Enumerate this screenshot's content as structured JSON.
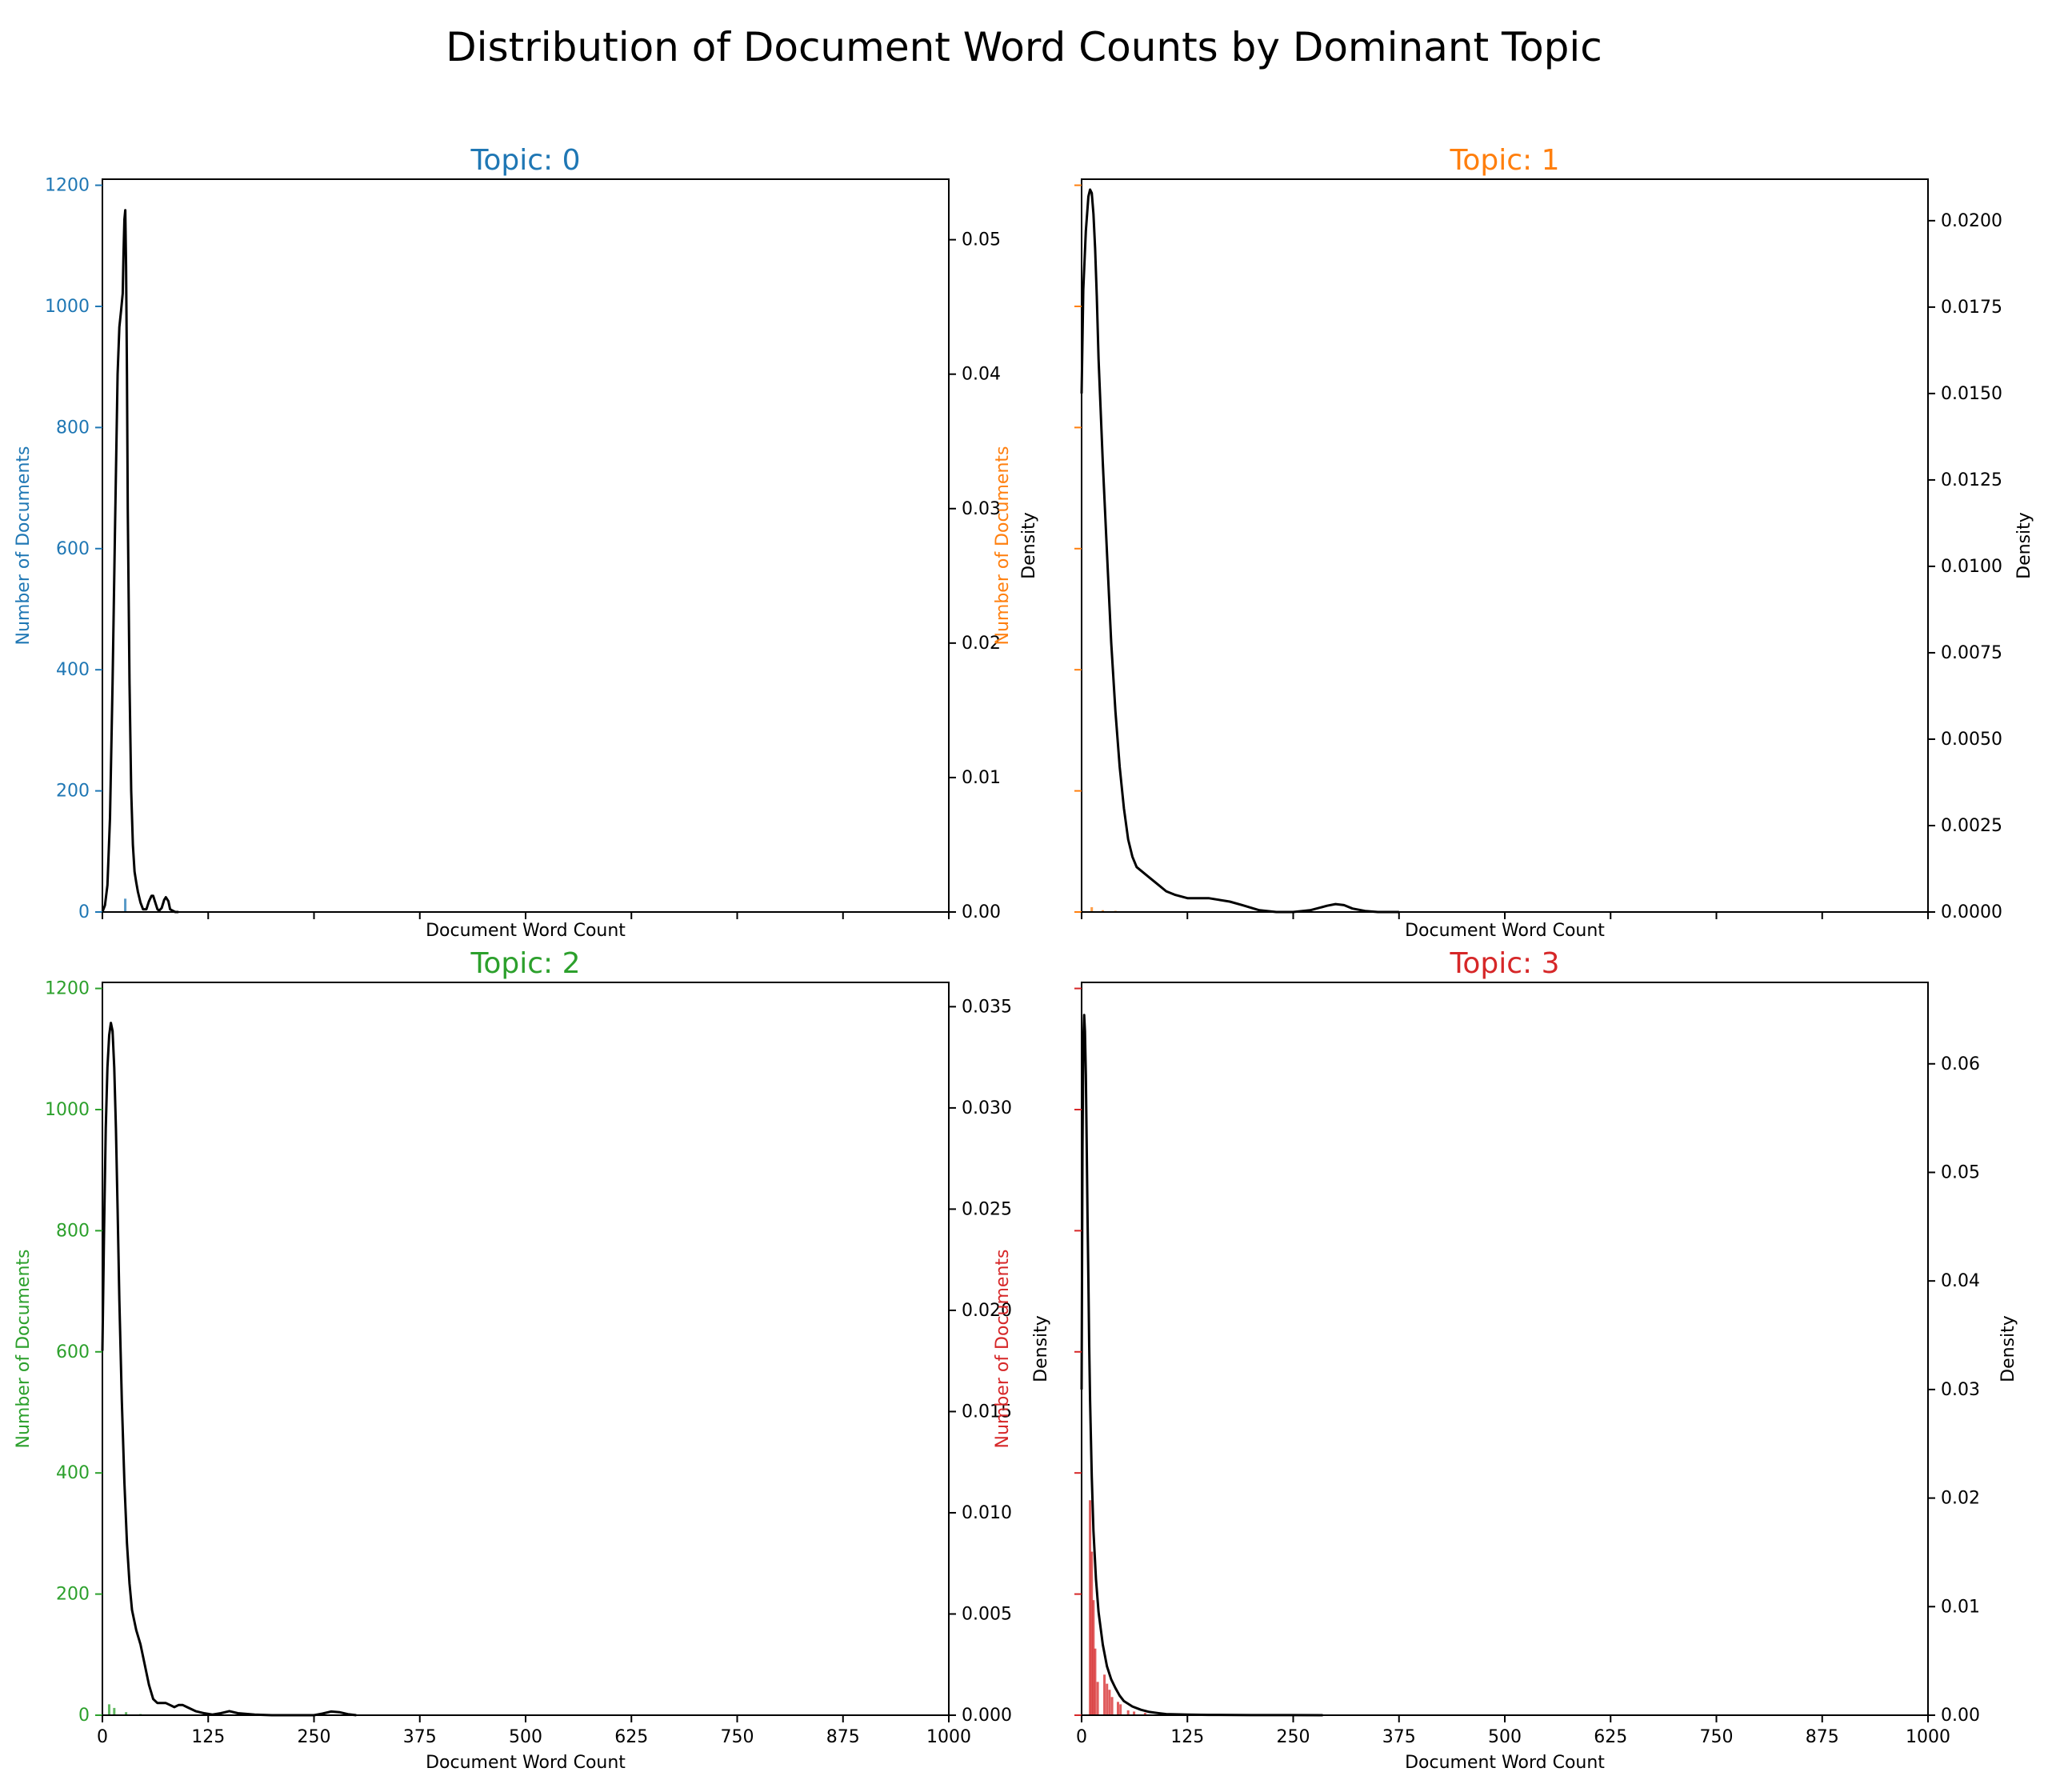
{
  "figure_title": "Distribution of Document Word Counts by Dominant Topic",
  "chart_data": [
    {
      "type": "line",
      "title": "Topic: 0",
      "color": "#1f77b4",
      "xlabel": "Document Word Count",
      "ylabel_left": "Number of Documents",
      "ylabel_right": "Density",
      "xlim": [
        0,
        1000
      ],
      "xticks": [
        0,
        125,
        250,
        375,
        500,
        625,
        750,
        875,
        1000
      ],
      "show_xtick_labels": false,
      "ylim_left": [
        0,
        1210
      ],
      "yticks_left": [
        0,
        200,
        400,
        600,
        800,
        1000,
        1200
      ],
      "show_left_tick_labels": true,
      "ylim_right": [
        0,
        0.0545
      ],
      "yticks_right": [
        0.0,
        0.01,
        0.02,
        0.03,
        0.04,
        0.05
      ],
      "ytick_right_labels": [
        "0.00",
        "0.01",
        "0.02",
        "0.03",
        "0.04",
        "0.05"
      ],
      "histogram": [
        {
          "x": 27,
          "count": 22
        }
      ],
      "density": {
        "x": [
          0,
          3,
          6,
          9,
          12,
          15,
          18,
          20,
          22,
          24,
          25,
          26,
          27,
          28,
          29,
          30,
          32,
          34,
          36,
          38,
          40,
          42,
          45,
          48,
          52,
          55,
          58,
          60,
          62,
          65,
          67,
          70,
          73,
          75,
          78,
          80,
          83,
          86,
          90
        ],
        "y": [
          0.0,
          0.0005,
          0.002,
          0.007,
          0.017,
          0.029,
          0.04,
          0.0435,
          0.0447,
          0.046,
          0.049,
          0.0515,
          0.0522,
          0.048,
          0.04,
          0.03,
          0.017,
          0.009,
          0.005,
          0.003,
          0.0022,
          0.0015,
          0.0007,
          0.0002,
          0.0002,
          0.0008,
          0.0012,
          0.0012,
          0.0008,
          0.0002,
          0.0001,
          0.0003,
          0.0009,
          0.0011,
          0.0008,
          0.0002,
          0.0001,
          0.0,
          0.0
        ]
      }
    },
    {
      "type": "line",
      "title": "Topic: 1",
      "color": "#ff7f0e",
      "xlabel": "Document Word Count",
      "ylabel_left": "Number of Documents",
      "ylabel_right": "Density",
      "xlim": [
        0,
        1000
      ],
      "xticks": [
        0,
        125,
        250,
        375,
        500,
        625,
        750,
        875,
        1000
      ],
      "show_xtick_labels": false,
      "ylim_left": [
        0,
        1210
      ],
      "yticks_left": [
        0,
        200,
        400,
        600,
        800,
        1000,
        1200
      ],
      "show_left_tick_labels": false,
      "ylim_right": [
        0,
        0.0212
      ],
      "yticks_right": [
        0.0,
        0.0025,
        0.005,
        0.0075,
        0.01,
        0.0125,
        0.015,
        0.0175,
        0.02
      ],
      "ytick_right_labels": [
        "0.0000",
        "0.0025",
        "0.0050",
        "0.0075",
        "0.0100",
        "0.0125",
        "0.0150",
        "0.0175",
        "0.0200"
      ],
      "histogram": [
        {
          "x": 12,
          "count": 8
        },
        {
          "x": 25,
          "count": 3
        },
        {
          "x": 40,
          "count": 2
        }
      ],
      "density": {
        "x": [
          0,
          2,
          5,
          8,
          10,
          12,
          14,
          16,
          18,
          20,
          25,
          30,
          35,
          40,
          45,
          50,
          55,
          60,
          65,
          70,
          80,
          90,
          100,
          110,
          125,
          150,
          175,
          190,
          210,
          230,
          250,
          270,
          290,
          300,
          310,
          320,
          335,
          350,
          375
        ],
        "y": [
          0.015,
          0.018,
          0.0197,
          0.0207,
          0.0209,
          0.0208,
          0.0202,
          0.0192,
          0.0178,
          0.016,
          0.013,
          0.0104,
          0.0078,
          0.0058,
          0.0042,
          0.003,
          0.0021,
          0.0016,
          0.0013,
          0.0012,
          0.001,
          0.0008,
          0.0006,
          0.0005,
          0.0004,
          0.0004,
          0.0003,
          0.0002,
          5e-05,
          0.0,
          0.0,
          5e-05,
          0.00018,
          0.00023,
          0.0002,
          0.0001,
          3e-05,
          0.0,
          0.0
        ]
      }
    },
    {
      "type": "line",
      "title": "Topic: 2",
      "color": "#2ca02c",
      "xlabel": "Document Word Count",
      "ylabel_left": "Number of Documents",
      "ylabel_right": "Density",
      "xlim": [
        0,
        1000
      ],
      "xticks": [
        0,
        125,
        250,
        375,
        500,
        625,
        750,
        875,
        1000
      ],
      "show_xtick_labels": true,
      "ylim_left": [
        0,
        1210
      ],
      "yticks_left": [
        0,
        200,
        400,
        600,
        800,
        1000,
        1200
      ],
      "show_left_tick_labels": true,
      "ylim_right": [
        0,
        0.0362
      ],
      "yticks_right": [
        0.0,
        0.005,
        0.01,
        0.015,
        0.02,
        0.025,
        0.03,
        0.035
      ],
      "ytick_right_labels": [
        "0.000",
        "0.005",
        "0.010",
        "0.015",
        "0.020",
        "0.025",
        "0.030",
        "0.035"
      ],
      "histogram": [
        {
          "x": 8,
          "count": 18
        },
        {
          "x": 14,
          "count": 12
        },
        {
          "x": 28,
          "count": 5
        },
        {
          "x": 45,
          "count": 2
        }
      ],
      "density": {
        "x": [
          0,
          2,
          4,
          6,
          8,
          10,
          12,
          14,
          16,
          18,
          20,
          23,
          26,
          29,
          32,
          35,
          40,
          45,
          50,
          55,
          60,
          65,
          70,
          75,
          80,
          85,
          90,
          95,
          100,
          110,
          120,
          130,
          140,
          150,
          160,
          180,
          200,
          230,
          250,
          260,
          270,
          280,
          290,
          300
        ],
        "y": [
          0.018,
          0.024,
          0.029,
          0.032,
          0.0336,
          0.0342,
          0.0338,
          0.032,
          0.029,
          0.025,
          0.0205,
          0.0155,
          0.0115,
          0.0085,
          0.0065,
          0.0052,
          0.0042,
          0.0035,
          0.0025,
          0.0015,
          0.0008,
          0.0006,
          0.0006,
          0.0006,
          0.0005,
          0.0004,
          0.0005,
          0.0005,
          0.0004,
          0.0002,
          0.0001,
          3e-05,
          0.0001,
          0.0002,
          0.0001,
          3e-05,
          0.0,
          0.0,
          0.0,
          8e-05,
          0.00018,
          0.00015,
          5e-05,
          0.0
        ]
      }
    },
    {
      "type": "line",
      "title": "Topic: 3",
      "color": "#d62728",
      "xlabel": "Document Word Count",
      "ylabel_left": "Number of Documents",
      "ylabel_right": "Density",
      "xlim": [
        0,
        1000
      ],
      "xticks": [
        0,
        125,
        250,
        375,
        500,
        625,
        750,
        875,
        1000
      ],
      "show_xtick_labels": true,
      "ylim_left": [
        0,
        1210
      ],
      "yticks_left": [
        0,
        200,
        400,
        600,
        800,
        1000,
        1200
      ],
      "show_left_tick_labels": false,
      "ylim_right": [
        0,
        0.0675
      ],
      "yticks_right": [
        0.0,
        0.01,
        0.02,
        0.03,
        0.04,
        0.05,
        0.06
      ],
      "ytick_right_labels": [
        "0.00",
        "0.01",
        "0.02",
        "0.03",
        "0.04",
        "0.05",
        "0.06"
      ],
      "histogram": [
        {
          "x": 10,
          "count": 355
        },
        {
          "x": 12,
          "count": 270
        },
        {
          "x": 14,
          "count": 190
        },
        {
          "x": 16,
          "count": 110
        },
        {
          "x": 19,
          "count": 55
        },
        {
          "x": 27,
          "count": 67
        },
        {
          "x": 30,
          "count": 52
        },
        {
          "x": 33,
          "count": 42
        },
        {
          "x": 36,
          "count": 30
        },
        {
          "x": 43,
          "count": 22
        },
        {
          "x": 46,
          "count": 18
        },
        {
          "x": 55,
          "count": 8
        },
        {
          "x": 62,
          "count": 6
        },
        {
          "x": 75,
          "count": 4
        }
      ],
      "density": {
        "x": [
          0,
          1,
          2,
          3,
          4,
          5,
          6,
          7,
          8,
          9,
          10,
          12,
          14,
          17,
          20,
          25,
          30,
          35,
          40,
          45,
          50,
          60,
          70,
          80,
          90,
          100,
          125,
          150,
          200,
          250,
          285
        ],
        "y": [
          0.03,
          0.052,
          0.062,
          0.0645,
          0.063,
          0.059,
          0.053,
          0.046,
          0.04,
          0.034,
          0.029,
          0.022,
          0.017,
          0.0125,
          0.0095,
          0.0065,
          0.0045,
          0.0033,
          0.0025,
          0.0018,
          0.0013,
          0.0008,
          0.0005,
          0.0003,
          0.0002,
          0.0001,
          5e-05,
          3e-05,
          1e-05,
          1e-05,
          0.0
        ]
      }
    }
  ]
}
